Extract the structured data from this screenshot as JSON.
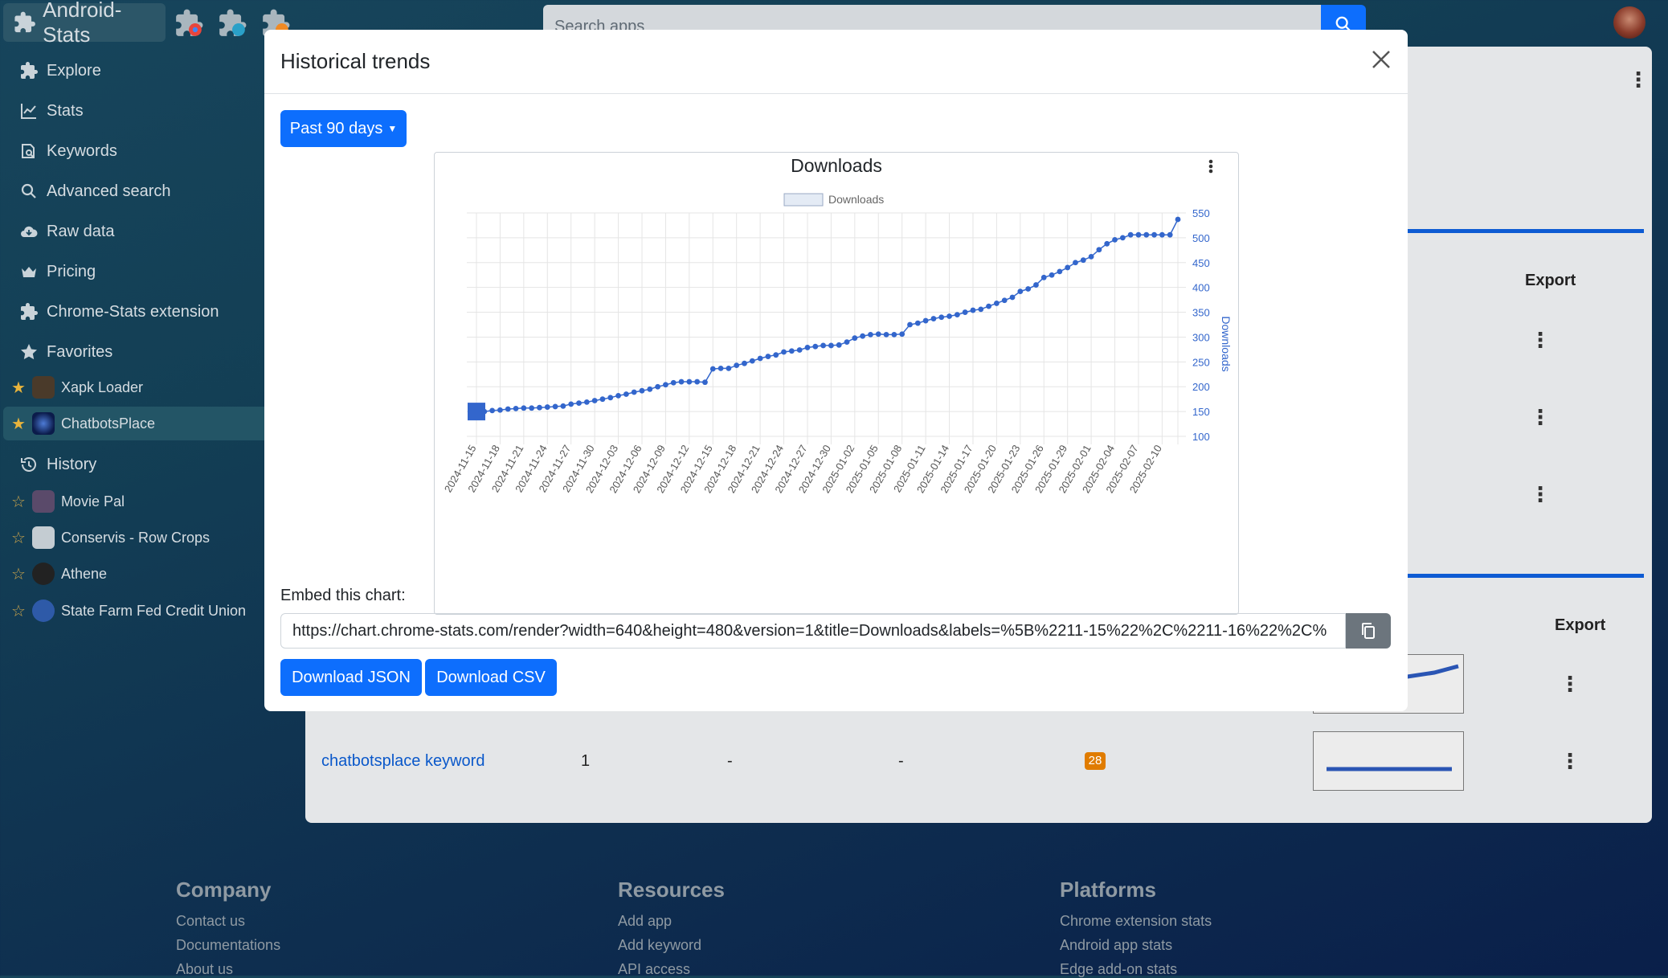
{
  "header": {
    "brand": "Android-Stats",
    "search_placeholder": "Search apps"
  },
  "sidebar": {
    "nav": [
      "Explore",
      "Stats",
      "Keywords",
      "Advanced search",
      "Raw data",
      "Pricing",
      "Chrome-Stats extension",
      "Favorites"
    ],
    "favorites": [
      "Xapk Loader",
      "ChatbotsPlace"
    ],
    "history_label": "History",
    "history": [
      "Movie Pal",
      "Conservis - Row Crops",
      "Athene",
      "State Farm Fed Credit Union"
    ]
  },
  "background": {
    "export_label": "Export",
    "keyword_row": {
      "keyword": "chatbotsplace keyword",
      "rank": "1",
      "col2": "-",
      "col3": "-",
      "badge": "28"
    }
  },
  "footer": {
    "company": {
      "title": "Company",
      "links": [
        "Contact us",
        "Documentations",
        "About us"
      ]
    },
    "resources": {
      "title": "Resources",
      "links": [
        "Add app",
        "Add keyword",
        "API access"
      ]
    },
    "platforms": {
      "title": "Platforms",
      "links": [
        "Chrome extension stats",
        "Android app stats",
        "Edge add-on stats"
      ]
    }
  },
  "modal": {
    "title": "Historical trends",
    "range_button": "Past 90 days",
    "embed_label": "Embed this chart:",
    "embed_url": "https://chart.chrome-stats.com/render?width=640&height=480&version=1&title=Downloads&labels=%5B%2211-15%22%2C%2211-16%22%2C%",
    "download_json": "Download JSON",
    "download_csv": "Download CSV"
  },
  "chart_data": {
    "type": "line",
    "title": "Downloads",
    "legend": [
      "Downloads"
    ],
    "ylabel": "Downloads",
    "ylim": [
      100,
      550
    ],
    "yticks": [
      100,
      150,
      200,
      250,
      300,
      350,
      400,
      450,
      500,
      550
    ],
    "xtick_labels": [
      "2024-11-15",
      "2024-11-18",
      "2024-11-21",
      "2024-11-24",
      "2024-11-27",
      "2024-11-30",
      "2024-12-03",
      "2024-12-06",
      "2024-12-09",
      "2024-12-12",
      "2024-12-15",
      "2024-12-18",
      "2024-12-21",
      "2024-12-24",
      "2024-12-27",
      "2024-12-30",
      "2025-01-02",
      "2025-01-05",
      "2025-01-08",
      "2025-01-11",
      "2025-01-14",
      "2025-01-17",
      "2025-01-20",
      "2025-01-23",
      "2025-01-26",
      "2025-01-29",
      "2025-02-01",
      "2025-02-04",
      "2025-02-07",
      "2025-02-10"
    ],
    "series": [
      {
        "name": "Downloads",
        "start_date": "2024-11-15",
        "values": [
          150,
          150,
          152,
          153,
          155,
          156,
          157,
          157,
          158,
          159,
          160,
          161,
          165,
          167,
          169,
          172,
          175,
          178,
          182,
          185,
          189,
          192,
          195,
          200,
          204,
          208,
          210,
          210,
          210,
          209,
          236,
          237,
          237,
          243,
          247,
          252,
          257,
          261,
          264,
          270,
          272,
          274,
          279,
          281,
          283,
          283,
          284,
          290,
          298,
          302,
          305,
          306,
          305,
          305,
          306,
          325,
          328,
          333,
          337,
          340,
          342,
          345,
          350,
          354,
          356,
          362,
          368,
          374,
          380,
          392,
          397,
          405,
          420,
          425,
          432,
          440,
          450,
          455,
          462,
          476,
          488,
          496,
          500,
          506,
          506,
          506,
          506,
          506,
          506,
          537
        ]
      }
    ]
  },
  "colors": {
    "accent": "#0d6efd",
    "line": "#3366cc",
    "badge": "#e07c00"
  },
  "icons": [
    "puzzle-icon",
    "chrome-icon",
    "edge-icon",
    "search-icon",
    "explore-icon",
    "stats-icon",
    "keywords-icon",
    "advanced-search-icon",
    "raw-data-icon",
    "pricing-icon",
    "star-icon",
    "history-icon",
    "close-icon",
    "copy-icon",
    "kebab-icon"
  ]
}
